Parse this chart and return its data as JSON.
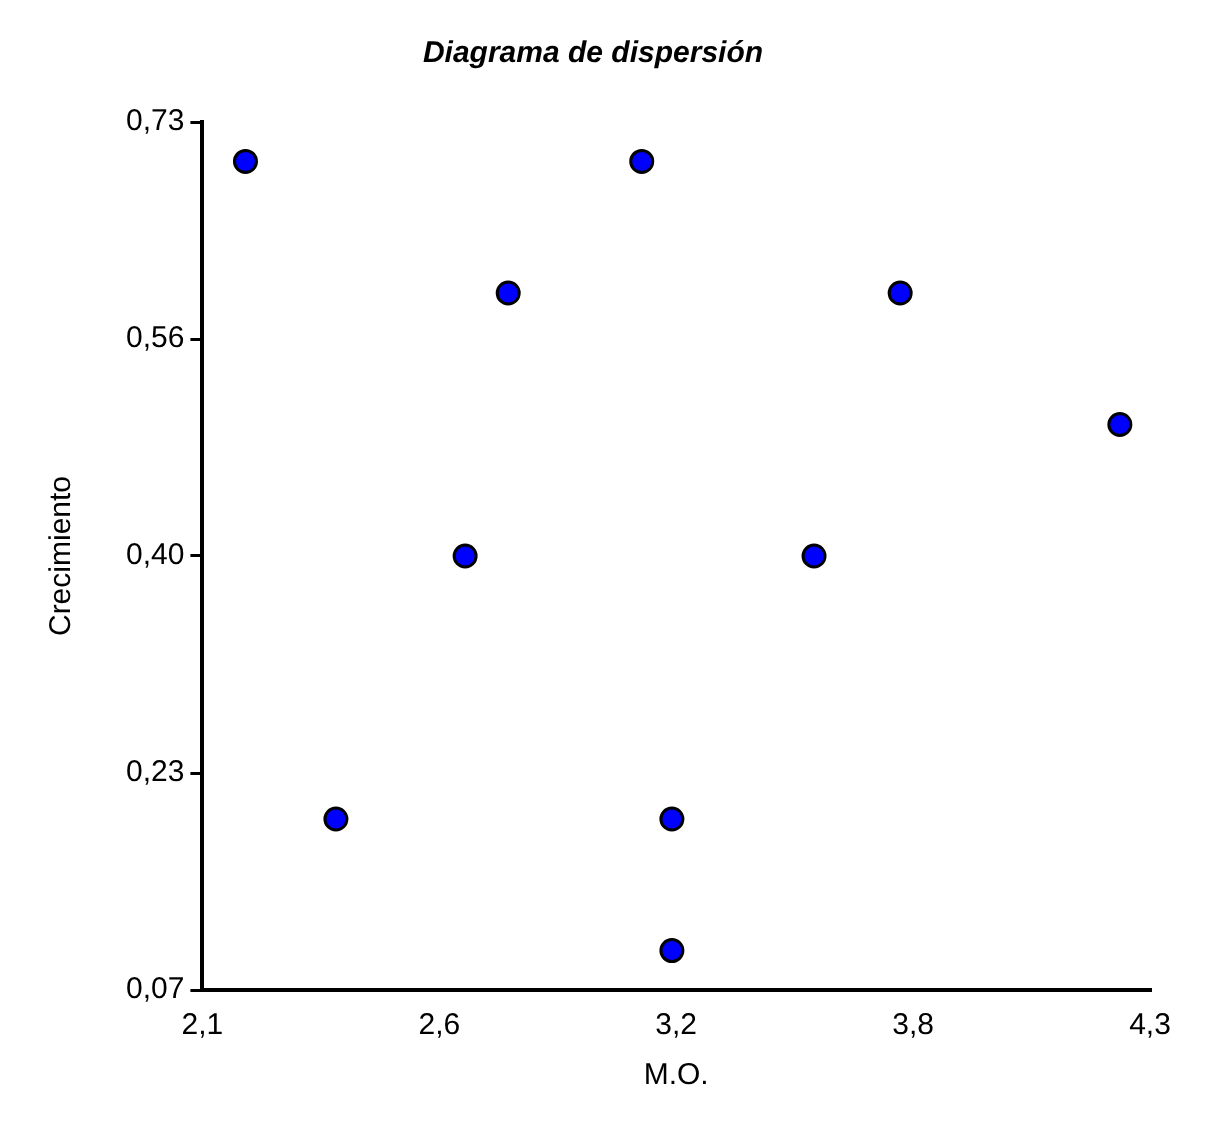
{
  "chart_data": {
    "type": "scatter",
    "title": "Diagrama de dispersión",
    "xlabel": "M.O.",
    "ylabel": "Crecimiento",
    "x": [
      2.2,
      3.12,
      2.81,
      3.72,
      4.23,
      2.71,
      3.52,
      2.41,
      3.19,
      3.19
    ],
    "series": [
      {
        "color": "#0000ff",
        "values": [
          0.7,
          0.7,
          0.6,
          0.6,
          0.5,
          0.4,
          0.4,
          0.2,
          0.2,
          0.1
        ]
      }
    ],
    "xlim": [
      2.1,
      4.3
    ],
    "xticks": [
      {
        "value": 2.1,
        "label": "2,1"
      },
      {
        "value": 2.65,
        "label": "2,6"
      },
      {
        "value": 3.2,
        "label": "3,2"
      },
      {
        "value": 3.75,
        "label": "3,8"
      },
      {
        "value": 4.3,
        "label": "4,3"
      }
    ],
    "ylim": [
      0.07,
      0.73
    ],
    "yticks": [
      {
        "value": 0.07,
        "label": "0,07"
      },
      {
        "value": 0.235,
        "label": "0,23"
      },
      {
        "value": 0.4,
        "label": "0,40"
      },
      {
        "value": 0.565,
        "label": "0,56"
      },
      {
        "value": 0.73,
        "label": "0,73"
      }
    ],
    "grid": false,
    "legend": false,
    "marker": "circle"
  }
}
